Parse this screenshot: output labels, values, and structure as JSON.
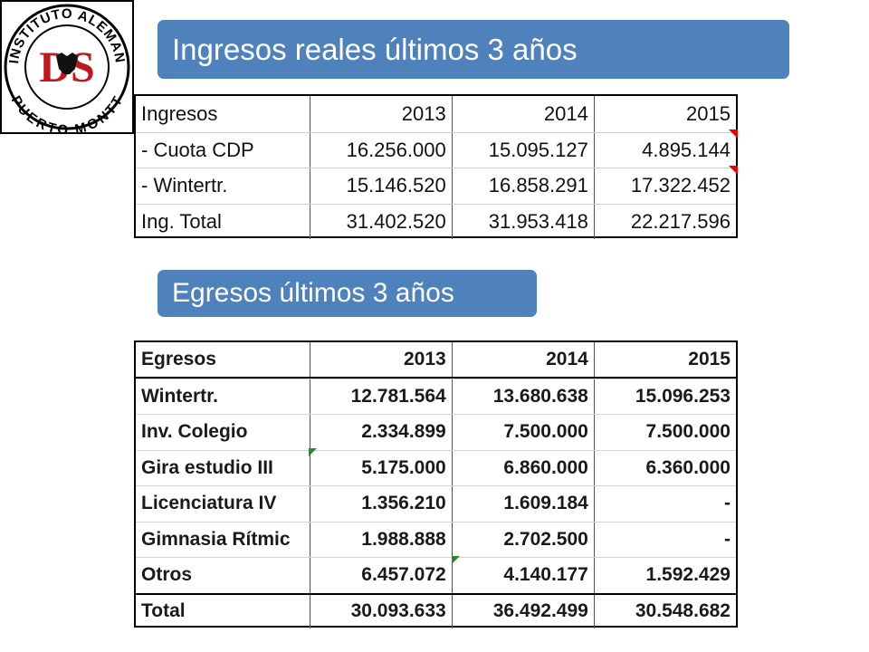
{
  "logo": {
    "top_text": "INSTITUTO ALEMAN",
    "bottom_text": "PUERTO MONTT",
    "monogram": "DS"
  },
  "income_title": "Ingresos reales últimos 3 años",
  "income_table": {
    "header": [
      "Ingresos",
      "2013",
      "2014",
      "2015"
    ],
    "rows": [
      [
        "- Cuota CDP",
        "16.256.000",
        "15.095.127",
        "4.895.144"
      ],
      [
        "- Wintertr.",
        "15.146.520",
        "16.858.291",
        "17.322.452"
      ],
      [
        "Ing. Total",
        "31.402.520",
        "31.953.418",
        "22.217.596"
      ]
    ]
  },
  "expense_title": "Egresos últimos 3 años",
  "expense_table": {
    "header": [
      "Egresos",
      "2013",
      "2014",
      "2015"
    ],
    "rows": [
      [
        "Wintertr.",
        "12.781.564",
        "13.680.638",
        "15.096.253"
      ],
      [
        "Inv. Colegio",
        "2.334.899",
        "7.500.000",
        "7.500.000"
      ],
      [
        "Gira estudio III",
        "5.175.000",
        "6.860.000",
        "6.360.000"
      ],
      [
        "Licenciatura IV",
        "1.356.210",
        "1.609.184",
        "-"
      ],
      [
        "Gimnasia Rítmic",
        "1.988.888",
        "2.702.500",
        "-"
      ],
      [
        "Otros",
        "6.457.072",
        "4.140.177",
        "1.592.429"
      ],
      [
        "Total",
        "30.093.633",
        "36.492.499",
        "30.548.682"
      ]
    ]
  }
}
